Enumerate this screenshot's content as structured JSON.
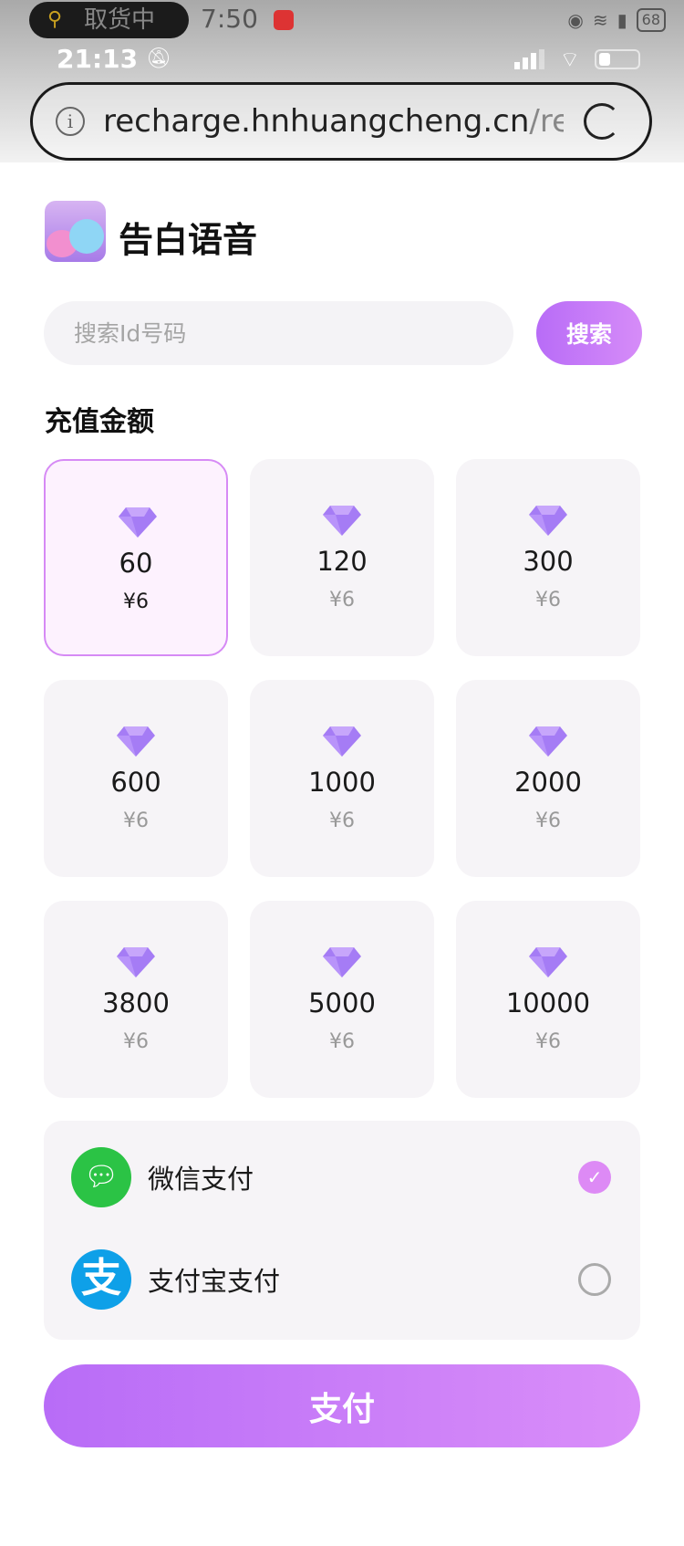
{
  "status_bar": {
    "notification_pill": "取货中",
    "time_secondary": "7:50",
    "time": "21:13",
    "battery_secondary": "68"
  },
  "browser": {
    "url_host": "recharge.hnhuangcheng.cn",
    "url_path": "/rect"
  },
  "app": {
    "title": "告白语音"
  },
  "search": {
    "placeholder": "搜索Id号码",
    "value": "",
    "button_label": "搜索"
  },
  "recharge": {
    "section_title": "充值金额",
    "packages": [
      {
        "amount": "60",
        "price": "¥6",
        "selected": true
      },
      {
        "amount": "120",
        "price": "¥6",
        "selected": false
      },
      {
        "amount": "300",
        "price": "¥6",
        "selected": false
      },
      {
        "amount": "600",
        "price": "¥6",
        "selected": false
      },
      {
        "amount": "1000",
        "price": "¥6",
        "selected": false
      },
      {
        "amount": "2000",
        "price": "¥6",
        "selected": false
      },
      {
        "amount": "3800",
        "price": "¥6",
        "selected": false
      },
      {
        "amount": "5000",
        "price": "¥6",
        "selected": false
      },
      {
        "amount": "10000",
        "price": "¥6",
        "selected": false
      }
    ]
  },
  "payment": {
    "methods": [
      {
        "label": "微信支付",
        "icon": "wechat-icon",
        "selected": true
      },
      {
        "label": "支付宝支付",
        "icon": "alipay-icon",
        "selected": false
      }
    ],
    "alipay_glyph": "支",
    "pay_button": "支付"
  },
  "colors": {
    "accent": "#b86cf7",
    "accent_end": "#d68cf8",
    "wechat": "#2bc345",
    "alipay": "#0ea0e8"
  }
}
